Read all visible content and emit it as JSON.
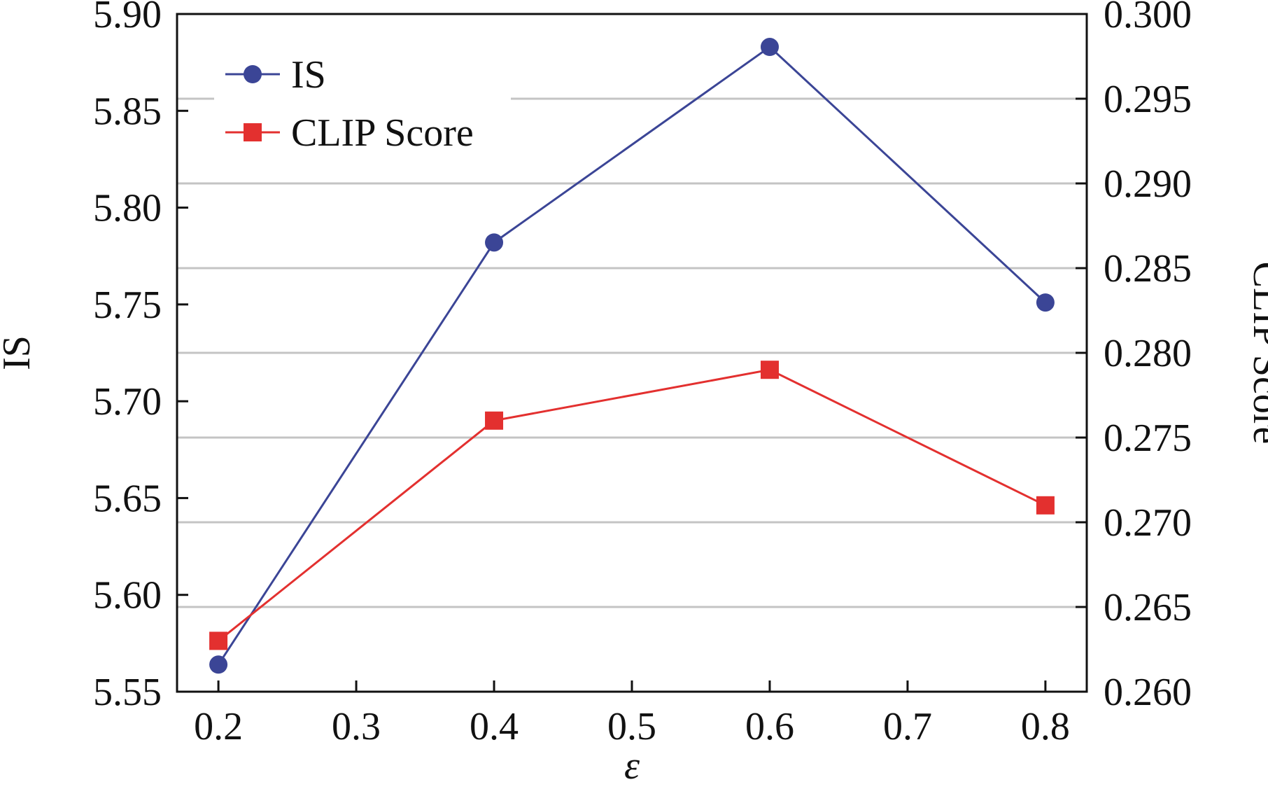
{
  "chart_data": {
    "type": "line",
    "xlabel": "ε",
    "ylabel_left": "IS",
    "ylabel_right": "CLIP Score",
    "x_ticks": [
      "0.2",
      "0.3",
      "0.4",
      "0.5",
      "0.6",
      "0.7",
      "0.8"
    ],
    "x_range": [
      0.17,
      0.83
    ],
    "y_left_ticks": [
      "5.55",
      "5.60",
      "5.65",
      "5.70",
      "5.75",
      "5.80",
      "5.85",
      "5.90"
    ],
    "y_left_range": [
      5.55,
      5.9
    ],
    "y_right_ticks": [
      "0.260",
      "0.265",
      "0.270",
      "0.275",
      "0.280",
      "0.285",
      "0.290",
      "0.295",
      "0.300"
    ],
    "y_right_range": [
      0.26,
      0.3
    ],
    "grid": "horizontal",
    "legend_position": "top-left",
    "x": [
      0.2,
      0.4,
      0.6,
      0.8
    ],
    "series": [
      {
        "name": "IS",
        "axis": "left",
        "values": [
          5.564,
          5.782,
          5.883,
          5.751
        ],
        "color": "#3b4596",
        "marker": "circle"
      },
      {
        "name": "CLIP Score",
        "axis": "right",
        "values": [
          0.263,
          0.276,
          0.279,
          0.271
        ],
        "color": "#e3302f",
        "marker": "square"
      }
    ]
  }
}
